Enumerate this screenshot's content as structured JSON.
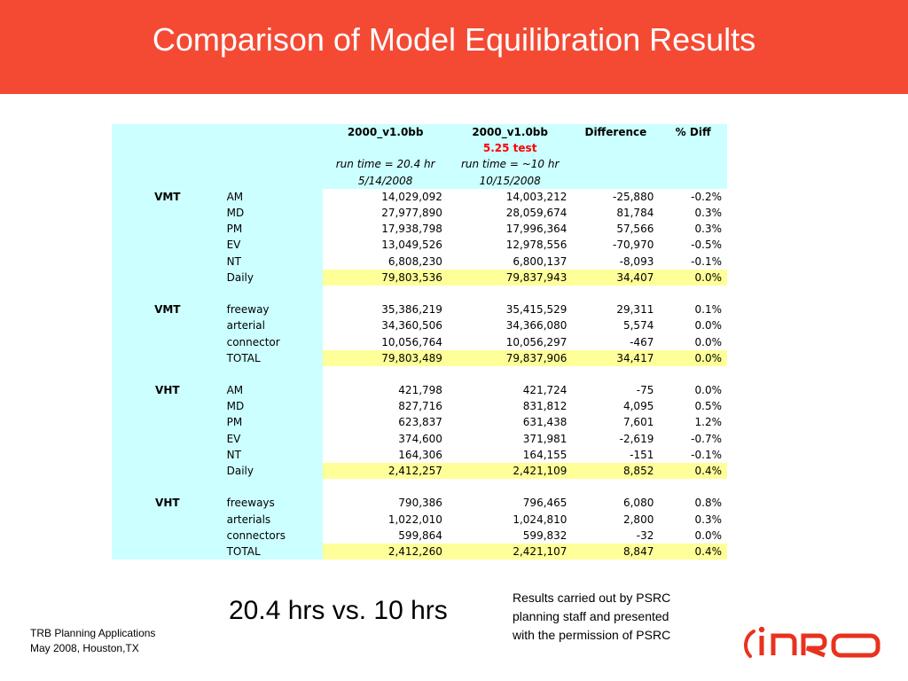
{
  "slide": {
    "title": "Comparison of Model Equilibration Results",
    "big_text": "20.4 hrs vs. 10 hrs",
    "note_lines": [
      "Results carried out by PSRC",
      "planning staff and presented",
      "with the permission of PSRC"
    ],
    "footer_lines": [
      "TRB Planning Applications",
      "May 2008, Houston,TX"
    ],
    "logo_text": "INRO"
  },
  "table": {
    "header": {
      "row1": [
        "2000_v1.0bb",
        "2000_v1.0bb",
        "Difference",
        "% Diff"
      ],
      "row2": [
        "",
        "5.25 test",
        "",
        ""
      ],
      "row3": [
        "run time = 20.4 hr",
        "run time = ~10 hr",
        "",
        ""
      ],
      "row4": [
        "5/14/2008",
        "10/15/2008",
        "",
        ""
      ]
    },
    "groups": [
      {
        "label": "VMT",
        "rows": [
          {
            "sub": "AM",
            "a": "14,029,092",
            "b": "14,003,212",
            "diff": "-25,880",
            "pct": "-0.2%"
          },
          {
            "sub": "MD",
            "a": "27,977,890",
            "b": "28,059,674",
            "diff": "81,784",
            "pct": "0.3%"
          },
          {
            "sub": "PM",
            "a": "17,938,798",
            "b": "17,996,364",
            "diff": "57,566",
            "pct": "0.3%"
          },
          {
            "sub": "EV",
            "a": "13,049,526",
            "b": "12,978,556",
            "diff": "-70,970",
            "pct": "-0.5%"
          },
          {
            "sub": "NT",
            "a": "6,808,230",
            "b": "6,800,137",
            "diff": "-8,093",
            "pct": "-0.1%"
          },
          {
            "sub": "Daily",
            "a": "79,803,536",
            "b": "79,837,943",
            "diff": "34,407",
            "pct": "0.0%",
            "total": true
          }
        ]
      },
      {
        "label": "VMT",
        "rows": [
          {
            "sub": "freeway",
            "a": "35,386,219",
            "b": "35,415,529",
            "diff": "29,311",
            "pct": "0.1%"
          },
          {
            "sub": "arterial",
            "a": "34,360,506",
            "b": "34,366,080",
            "diff": "5,574",
            "pct": "0.0%"
          },
          {
            "sub": "connector",
            "a": "10,056,764",
            "b": "10,056,297",
            "diff": "-467",
            "pct": "0.0%"
          },
          {
            "sub": "TOTAL",
            "a": "79,803,489",
            "b": "79,837,906",
            "diff": "34,417",
            "pct": "0.0%",
            "total": true
          }
        ]
      },
      {
        "label": "VHT",
        "rows": [
          {
            "sub": "AM",
            "a": "421,798",
            "b": "421,724",
            "diff": "-75",
            "pct": "0.0%"
          },
          {
            "sub": "MD",
            "a": "827,716",
            "b": "831,812",
            "diff": "4,095",
            "pct": "0.5%"
          },
          {
            "sub": "PM",
            "a": "623,837",
            "b": "631,438",
            "diff": "7,601",
            "pct": "1.2%"
          },
          {
            "sub": "EV",
            "a": "374,600",
            "b": "371,981",
            "diff": "-2,619",
            "pct": "-0.7%"
          },
          {
            "sub": "NT",
            "a": "164,306",
            "b": "164,155",
            "diff": "-151",
            "pct": "-0.1%"
          },
          {
            "sub": "Daily",
            "a": "2,412,257",
            "b": "2,421,109",
            "diff": "8,852",
            "pct": "0.4%",
            "total": true
          }
        ]
      },
      {
        "label": "VHT",
        "rows": [
          {
            "sub": "freeways",
            "a": "790,386",
            "b": "796,465",
            "diff": "6,080",
            "pct": "0.8%"
          },
          {
            "sub": "arterials",
            "a": "1,022,010",
            "b": "1,024,810",
            "diff": "2,800",
            "pct": "0.3%"
          },
          {
            "sub": "connectors",
            "a": "599,864",
            "b": "599,832",
            "diff": "-32",
            "pct": "0.0%"
          },
          {
            "sub": "TOTAL",
            "a": "2,412,260",
            "b": "2,421,107",
            "diff": "8,847",
            "pct": "0.4%",
            "total": true
          }
        ]
      }
    ]
  },
  "colors": {
    "header_bar": "#f44a34",
    "table_label_bg": "#ccffff",
    "total_row_bg": "#ffff99",
    "accent_red": "#ff0000",
    "logo_red": "#e8321e"
  }
}
